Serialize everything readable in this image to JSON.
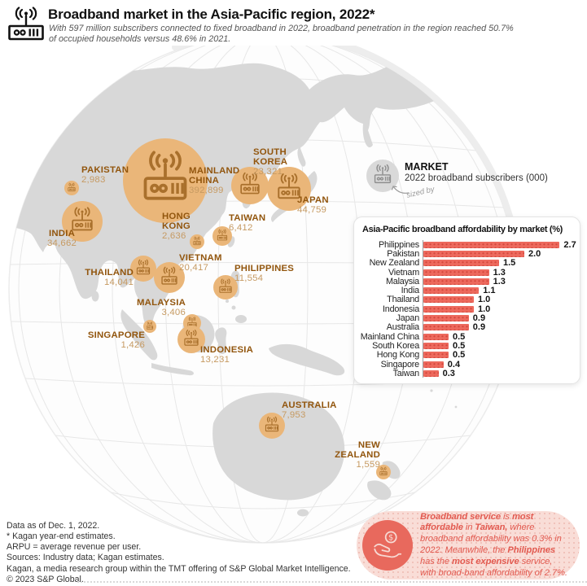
{
  "header": {
    "title": "Broadband market in the Asia-Pacific region, 2022*",
    "subtitle_lines": [
      "With 597 million subscribers connected to fixed broadband in 2022, broadband penetration in the region reached 50.7%",
      "of occupied households versus 48.6% in 2021."
    ],
    "logo_icon": "broadband-modem-icon"
  },
  "legend": {
    "title": "MARKET",
    "subtitle": "2022 broadband subscribers (000)",
    "sized_by": "sized by"
  },
  "map": {
    "markets": [
      {
        "id": "pakistan",
        "name": "PAKISTAN",
        "value": "2,983"
      },
      {
        "id": "india",
        "name": "INDIA",
        "value": "34,662"
      },
      {
        "id": "mainland-china",
        "name": "MAINLAND CHINA",
        "value": "392,899"
      },
      {
        "id": "south-korea",
        "name": "SOUTH KOREA",
        "value": "23,321"
      },
      {
        "id": "japan",
        "name": "JAPAN",
        "value": "44,759"
      },
      {
        "id": "taiwan",
        "name": "TAIWAN",
        "value": "6,412"
      },
      {
        "id": "hong-kong",
        "name": "HONG KONG",
        "value": "2,636"
      },
      {
        "id": "vietnam",
        "name": "VIETNAM",
        "value": "20,417"
      },
      {
        "id": "thailand",
        "name": "THAILAND",
        "value": "14,041"
      },
      {
        "id": "philippines",
        "name": "PHILIPPINES",
        "value": "11,554"
      },
      {
        "id": "malaysia",
        "name": "MALAYSIA",
        "value": "3,406"
      },
      {
        "id": "singapore",
        "name": "SINGAPORE",
        "value": "1,426"
      },
      {
        "id": "indonesia",
        "name": "INDONESIA",
        "value": "13,231"
      },
      {
        "id": "australia",
        "name": "AUSTRALIA",
        "value": "7,953"
      },
      {
        "id": "new-zealand",
        "name": "NEW ZEALAND",
        "value": "1,559"
      }
    ]
  },
  "chart_data": [
    {
      "type": "bar",
      "orientation": "horizontal",
      "title": "Asia-Pacific broadband affordability by market (%)",
      "categories": [
        "Philippines",
        "Pakistan",
        "New Zealand",
        "Vietnam",
        "Malaysia",
        "India",
        "Thailand",
        "Indonesia",
        "Japan",
        "Australia",
        "Mainland China",
        "South Korea",
        "Hong Kong",
        "Singapore",
        "Taiwan"
      ],
      "values": [
        2.7,
        2.0,
        1.5,
        1.3,
        1.3,
        1.1,
        1.0,
        1.0,
        0.9,
        0.9,
        0.5,
        0.5,
        0.5,
        0.4,
        0.3
      ],
      "value_labels": [
        "2.7",
        "2.0",
        "1.5",
        "1.3",
        "1.3",
        "1.1",
        "1.0",
        "1.0",
        "0.9",
        "0.9",
        "0.5",
        "0.5",
        "0.5",
        "0.4",
        "0.3"
      ],
      "xlim": [
        0,
        2.7
      ],
      "grid": false,
      "legend_position": "none",
      "bar_color": "#ed695d"
    },
    {
      "type": "table",
      "title": "2022 broadband subscribers (000) by market",
      "categories": [
        "Pakistan",
        "India",
        "Mainland China",
        "South Korea",
        "Japan",
        "Taiwan",
        "Hong Kong",
        "Vietnam",
        "Thailand",
        "Philippines",
        "Malaysia",
        "Singapore",
        "Indonesia",
        "Australia",
        "New Zealand"
      ],
      "values": [
        2983,
        34662,
        392899,
        23321,
        44759,
        6412,
        2636,
        20417,
        14041,
        11554,
        3406,
        1426,
        13231,
        7953,
        1559
      ]
    }
  ],
  "callout": {
    "segments": [
      {
        "text": "Broadband service",
        "bold": true
      },
      {
        "text": " is ",
        "bold": false
      },
      {
        "text": "most affordable",
        "bold": true
      },
      {
        "text": " in ",
        "bold": false
      },
      {
        "text": "Taiwan,",
        "bold": true
      },
      {
        "text": " where broadband affordability was 0.3% in 2022. Meanwhile, the ",
        "bold": false
      },
      {
        "text": "Philippines",
        "bold": true
      },
      {
        "text": " has the ",
        "bold": false
      },
      {
        "text": "most expensive",
        "bold": true
      },
      {
        "text": " service, with broad-band affordability of 2.7%.",
        "bold": false
      }
    ],
    "icon": "hand-coin-icon"
  },
  "footer": {
    "lines": [
      "Data as of Dec. 1, 2022.",
      "* Kagan year-end estimates.",
      "ARPU = average revenue per user.",
      "Sources: Industry data; Kagan estimates.",
      "Kagan, a media research group within the TMT offering of S&P Global Market Intelligence.",
      "© 2023 S&P Global."
    ]
  },
  "colors": {
    "bubble": "#eab679",
    "bubble_icon": "#a9702c",
    "bar": "#ed695d",
    "bar_dot": "#d4493e",
    "market_name": "#92560e",
    "market_value": "#c69a62",
    "land": "#d8d8d8",
    "legend_gray": "#d9d9d9",
    "callout_bg": "#f9ddd7",
    "callout_text": "#e25a50"
  }
}
